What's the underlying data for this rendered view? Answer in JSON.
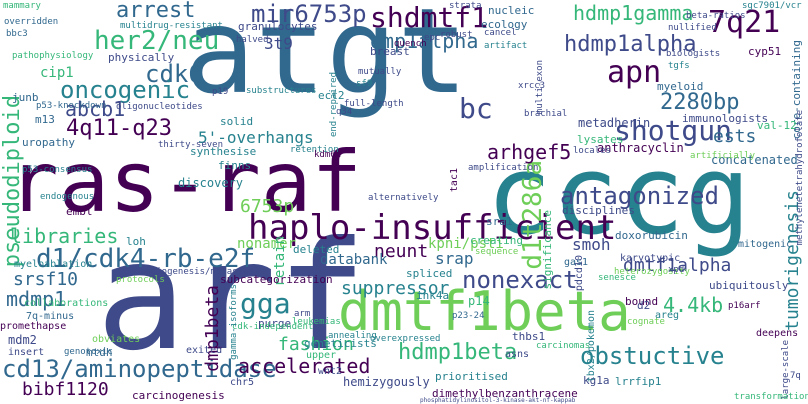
{
  "palette": {
    "dark_purple": "#440154",
    "indigo": "#3e4a89",
    "blue": "#31688e",
    "teal": "#26828e",
    "green": "#35b779",
    "light_green": "#6ece58",
    "lime": "#b5de2b",
    "yellow": "#fde725"
  },
  "words": {
    "atgt": "atgt",
    "arf": "arf",
    "ras_raf": "ras-raf",
    "cccg": "cccg",
    "dmtf1beta": "dmtf1beta",
    "haplo_insufficient": "haplo-insufficient",
    "d1_cdk4_rb_e2f": "d1/cdk4-rb-e2f",
    "cd13_aminopeptidase": "cd13/aminopeptidase",
    "obstuctive": "obstuctive",
    "accelerated": "accelerated",
    "hdmp1beta": "hdmp1beta",
    "nonexact": "nonexact",
    "antagonized": "antagonized",
    "shotgun": "shotgun",
    "apn": "apn",
    "x2280bp": "2280bp",
    "q7q21": "7q21",
    "shdmtf1": "shdmtf1",
    "mir6753p": "mir6753p",
    "dmp1alpha": "dmp1alpha",
    "hdmp1alpha": "hdmp1alpha",
    "hdmp1gamma": "hdmp1gamma",
    "arrest": "arrest",
    "her2_neu": "her2/neu",
    "cdk6": "cdk6",
    "oncogenic": "oncogenic",
    "abcb1": "abcb1",
    "q4q11_q23": "4q11-q23",
    "pseudodiploid": "pseudodiploid",
    "d1t286a": "d1t286a",
    "bc": "bc",
    "arhgef5": "arhgef5",
    "x6753p": "6753p",
    "neunt": "neunt",
    "fashion": "fashion",
    "gga": "gga",
    "dmp1beta": "dmp1beta",
    "suppressor": "suppressor",
    "dmtf1alpha": "dmtf1alpha",
    "x4_4kb": "4.4kb",
    "bibf1120": "bibf1120",
    "mdmp1": "mdmp1",
    "srsf10": "srsf10",
    "libraries": "libraries",
    "ests": "ests",
    "tumorigenesis": "tumorigenesis",
    "x3t9": "3t9",
    "x5_overhangs": "5'-overhangs",
    "granulocytes": "granulocytes",
    "cip1": "cip1",
    "nonamer": "nonamer",
    "databank": "databank",
    "retain": "retain",
    "kpni_psti": "kpni/psti",
    "srap": "srap",
    "smoh": "smoh",
    "concatenated": "concatenated",
    "metadherin": "metadherin",
    "anthracyclin": "anthracyclin",
    "lysates": "lysates",
    "immunologists": "immunologists",
    "myeloid": "myeloid",
    "ecology": "ecology",
    "breast": "breast",
    "nucleic": "nucleic",
    "physically": "physically",
    "solid": "solid",
    "synthesise": "synthesise",
    "finns": "finns",
    "discovery": "discovery",
    "deleted": "deleted",
    "spliced": "spliced",
    "creating": "creating",
    "sra1": "sra1",
    "significance": "significance",
    "disciplines": "disciplines",
    "ubiquitously": "ubiquitously",
    "p14": "p14",
    "ink4a": "ink4a",
    "prioritised": "prioritised",
    "hemizygously": "hemizygously",
    "dimethylbenzanthracene": "dimethylbenzanthracene",
    "thbs1": "thbs1",
    "kg1a": "kg1a",
    "lrrfip1": "lrrfip1",
    "tbx2_pokemon": "tbx2/pokemon",
    "purge": "purge",
    "geneticists": "geneticists",
    "carcinogenesis": "carcinogenesis",
    "mdm2": "mdm2",
    "mtdh": "mtdh",
    "subcategorization": "subcategorization",
    "collaborations": "collaborations",
    "myeloablation": "myeloablation",
    "loh": "loh",
    "embl": "embl",
    "junb": "junb",
    "m13": "m13",
    "uropathy": "uropathy",
    "core_containing": "core-containing",
    "val_12": "val-12",
    "cyp51": "cyp51",
    "tac1": "tac1",
    "doxorubicin": "doxorubicin",
    "pdcd10": "pdcd10",
    "gas1": "gas1",
    "karyotypic": "karyotypic",
    "mitogenic": "mitogenic",
    "bound": "bound",
    "areg": "areg",
    "d2": "d2",
    "deepens": "deepens",
    "obviates": "obviates",
    "genotoxic": "genotoxic",
    "insert": "insert",
    "exited": "exited",
    "asns": "asns",
    "wnt2": "wnt2",
    "upper": "upper",
    "chr5": "chr5",
    "promethapse": "promethapse",
    "q7q_minus": "7q-minus",
    "protocols": "protocols",
    "cdk_independent": "cdk-independent",
    "gamma_isoforms": "gamma-isoforms",
    "leukemias": "leukemias",
    "arm": "arm",
    "overexpressed": "overexpressed",
    "annealing": "annealing",
    "p23_24": "p23-24",
    "carcinomas": "carcinomas",
    "cognate": "cognate",
    "angiogenesis_metastasis": "angiogenesis/metastasis",
    "endogenous": "endogenous",
    "p53_consensus": "p53-consensus",
    "thirty_seven": "thirty-seven",
    "p53_knockdown": "p53-knockdown",
    "pathophysiology": "pathophysiology",
    "oligonucleotides": "oligonucleotides",
    "substructures": "substructures",
    "mutually": "mutually",
    "sf9": "sf9",
    "end_repaired": "end-repaired",
    "full_length": "full-length",
    "q34": "q34",
    "ect2": "ect2",
    "amplification": "amplification",
    "retention": "retention",
    "kdm6a": "kdm6a",
    "alternatively": "alternatively",
    "overridden": "overridden",
    "multidrug_resistant": "multidrug-resistant",
    "halved": "halved",
    "strata": "strata",
    "robust": "robust",
    "quench": "quench",
    "artifact": "artifact",
    "cancel": "cancel",
    "nullified": "nullified",
    "beta_ratios": "beta-ratios",
    "sgc7901_vcr": "sgc7901/vcr",
    "biologists": "biologists",
    "tgfs": "tgfs",
    "xrcc3": "xrcc3",
    "multi_exon": "multi-exon",
    "locales": "locales",
    "brachial": "brachial",
    "p19": "p19",
    "phosphatidylinositol_kinase": "phosphatidylinositol-3-kinase-akt-nf-kappab",
    "large_scale": "large-scale",
    "transformation": "transformation",
    "q7q": "7q",
    "mammary": "mammary",
    "bbc3": "bbc3",
    "epc": "epc",
    "senesce": "senesce",
    "sequence": "sequence",
    "heterozygosity": "heterozygosity",
    "xpd": "xpd",
    "p16arf": "p16arf",
    "methylenetetrahydrofolate": "methylenetetrahydrofolate",
    "artificially": "artificially"
  }
}
